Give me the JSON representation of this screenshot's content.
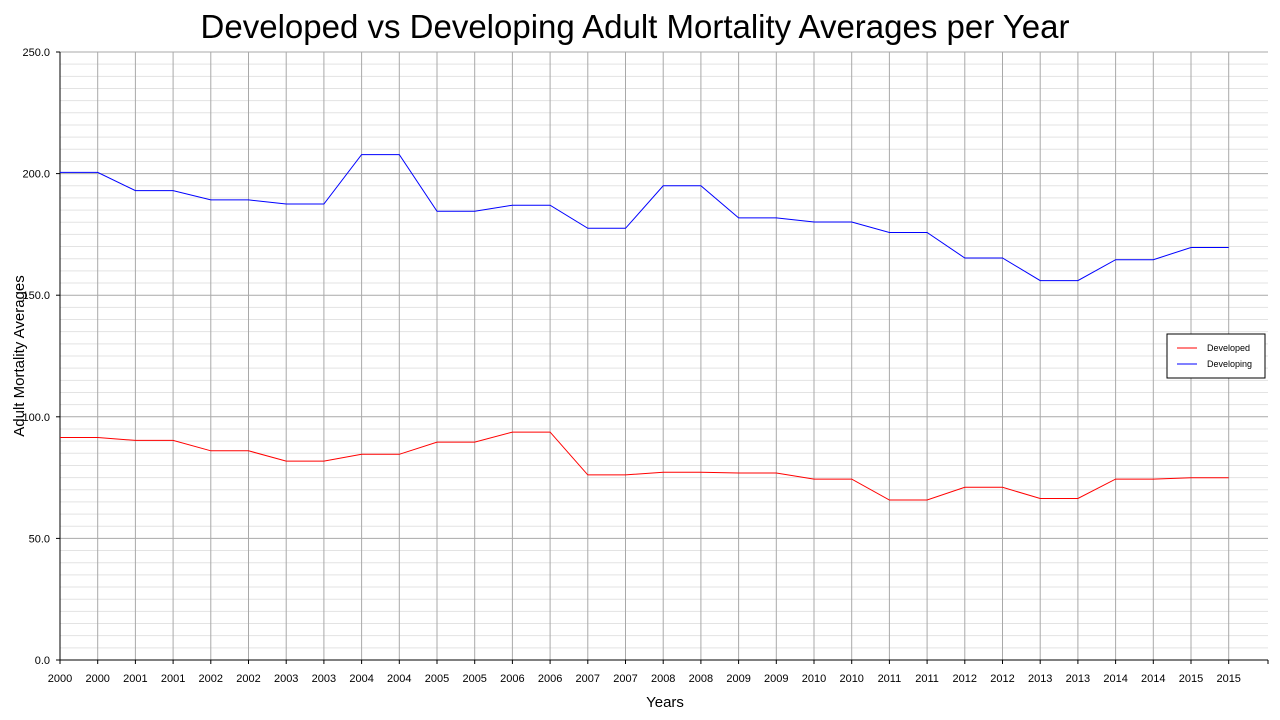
{
  "chart_data": {
    "type": "line",
    "title": "Developed vs Developing Adult Mortality Averages per Year",
    "xlabel": "Years",
    "ylabel": "Adult Mortality Averages",
    "x": [
      "2000",
      "2000",
      "2001",
      "2001",
      "2002",
      "2002",
      "2003",
      "2003",
      "2004",
      "2004",
      "2005",
      "2005",
      "2006",
      "2006",
      "2007",
      "2007",
      "2008",
      "2008",
      "2009",
      "2009",
      "2010",
      "2010",
      "2011",
      "2011",
      "2012",
      "2012",
      "2013",
      "2013",
      "2014",
      "2014",
      "2015",
      "2015"
    ],
    "ylim": [
      0,
      250
    ],
    "yticks": [
      "0.0",
      "50.0",
      "100.0",
      "150.0",
      "200.0",
      "250.0"
    ],
    "grid": true,
    "legend_position": "right",
    "series": [
      {
        "name": "Developed",
        "color": "#ff0000",
        "values": [
          91.5,
          91.5,
          90.3,
          90.3,
          86.0,
          86.0,
          81.8,
          81.8,
          84.6,
          84.6,
          89.6,
          89.6,
          93.7,
          93.7,
          76.1,
          76.1,
          77.2,
          77.2,
          76.9,
          76.9,
          74.4,
          74.4,
          65.8,
          65.8,
          71.0,
          71.0,
          66.4,
          66.4,
          74.4,
          74.4,
          74.9,
          74.9
        ]
      },
      {
        "name": "Developing",
        "color": "#0000ff",
        "values": [
          200.5,
          200.5,
          193.0,
          193.0,
          189.2,
          189.2,
          187.5,
          187.5,
          207.8,
          207.8,
          184.5,
          184.5,
          187.0,
          187.0,
          177.5,
          177.5,
          195.0,
          195.0,
          181.8,
          181.8,
          180.1,
          180.1,
          175.8,
          175.8,
          165.3,
          165.3,
          156.0,
          156.0,
          164.6,
          164.6,
          169.6,
          169.6
        ]
      }
    ]
  }
}
